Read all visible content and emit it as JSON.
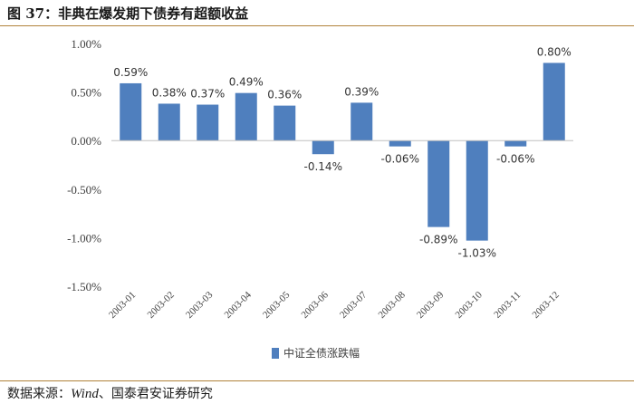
{
  "title_text": "图 37：非典在爆发期下债券有超额收益",
  "source": {
    "prefix": "数据来源：",
    "italic": "Wind",
    "suffix": "、国泰君安证券研究"
  },
  "colors": {
    "bar": "#4f7fbe",
    "axis": "#bfbfbf",
    "text": "#404040",
    "rule": "#b0823a"
  },
  "chart_data": {
    "type": "bar",
    "title": "",
    "xlabel": "",
    "ylabel": "",
    "ylim": [
      -1.5,
      1.0
    ],
    "yticks": [
      1.0,
      0.5,
      0.0,
      -0.5,
      -1.0,
      -1.5
    ],
    "ytick_labels": [
      "1.00%",
      "0.50%",
      "0.00%",
      "-0.50%",
      "-1.00%",
      "-1.50%"
    ],
    "categories": [
      "2003-01",
      "2003-02",
      "2003-03",
      "2003-04",
      "2003-05",
      "2003-06",
      "2003-07",
      "2003-08",
      "2003-09",
      "2003-10",
      "2003-11",
      "2003-12"
    ],
    "series": [
      {
        "name": "中证全债涨跌幅",
        "values": [
          0.59,
          0.38,
          0.37,
          0.49,
          0.36,
          -0.14,
          0.39,
          -0.06,
          -0.89,
          -1.03,
          -0.06,
          0.8
        ],
        "labels": [
          "0.59%",
          "0.38%",
          "0.37%",
          "0.49%",
          "0.36%",
          "-0.14%",
          "0.39%",
          "-0.06%",
          "-0.89%",
          "-1.03%",
          "-0.06%",
          "0.80%"
        ]
      }
    ],
    "legend": "bottom-center",
    "grid": false
  }
}
